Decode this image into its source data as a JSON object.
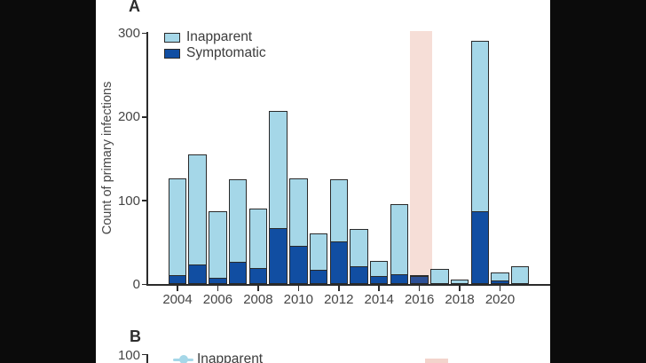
{
  "panel_a": {
    "label": "A",
    "ylabel": "Count of primary infections",
    "legend": [
      {
        "label": "Inapparent",
        "color": "#a5d7e8"
      },
      {
        "label": "Symptomatic",
        "color": "#114ea2"
      }
    ]
  },
  "panel_b": {
    "label": "B",
    "first_ytick": "100",
    "legend": [
      {
        "label": "Inapparent",
        "color": "#a5d7e8",
        "marker": "line-dot"
      }
    ]
  },
  "chart_data": {
    "type": "bar",
    "stacked": true,
    "title": "",
    "xlabel": "",
    "ylabel": "Count of primary infections",
    "ylim": [
      0,
      300
    ],
    "y_ticks": [
      0,
      100,
      200,
      300
    ],
    "x_tick_labels": [
      "2004",
      "2006",
      "2008",
      "2010",
      "2012",
      "2014",
      "2016",
      "2018",
      "2020"
    ],
    "categories": [
      2004,
      2005,
      2006,
      2007,
      2008,
      2009,
      2010,
      2011,
      2012,
      2013,
      2014,
      2015,
      2016,
      2017,
      2018,
      2019,
      2020,
      2021
    ],
    "series": [
      {
        "name": "Symptomatic",
        "color": "#114ea2",
        "values": [
          8,
          21,
          5,
          24,
          17,
          65,
          43,
          15,
          49,
          19,
          7,
          10,
          7,
          0,
          0,
          85,
          2,
          0
        ]
      },
      {
        "name": "Inapparent",
        "color": "#a5d7e8",
        "values": [
          118,
          134,
          82,
          101,
          73,
          142,
          83,
          45,
          76,
          47,
          21,
          85,
          4,
          18,
          5,
          205,
          12,
          21
        ]
      }
    ],
    "totals": [
      126,
      155,
      87,
      125,
      90,
      207,
      126,
      60,
      125,
      66,
      28,
      95,
      11,
      18,
      5,
      290,
      14,
      21
    ],
    "legend_position": "top-left",
    "grid": false,
    "highlight_band": {
      "year": 2016,
      "color": "#f6ded7",
      "muted_bar_colors": {
        "inapparent": "#b4c4cf",
        "symptomatic": "#2d5096"
      }
    }
  },
  "colors": {
    "background": "#0b0b0b",
    "panel": "#ffffff",
    "axis": "#2b2b2b",
    "inapparent": "#a5d7e8",
    "symptomatic": "#114ea2",
    "band_pink": "#f6ded7"
  }
}
